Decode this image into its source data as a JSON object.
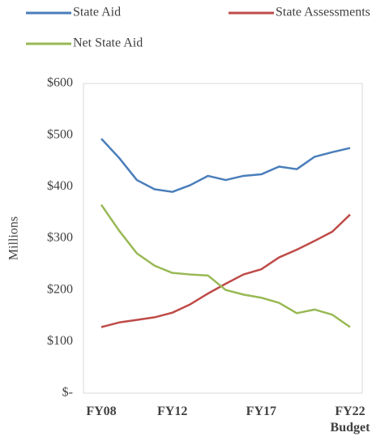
{
  "chart_data": {
    "type": "line",
    "y_label": "Millions",
    "categories": [
      "FY08",
      null,
      null,
      null,
      "FY12",
      null,
      null,
      null,
      null,
      "FY17",
      null,
      null,
      null,
      null,
      "FY22 Budget"
    ],
    "series": [
      {
        "name": "State Aid",
        "color": "#4a7ebb",
        "values": [
          493,
          456,
          413,
          395,
          390,
          403,
          421,
          413,
          421,
          424,
          439,
          434,
          458,
          467,
          475
        ]
      },
      {
        "name": "State Assessments",
        "color": "#be4b48",
        "values": [
          128,
          137,
          142,
          147,
          156,
          172,
          193,
          212,
          230,
          240,
          263,
          278,
          295,
          313,
          346
        ]
      },
      {
        "name": "Net State Aid",
        "color": "#98b954",
        "values": [
          365,
          315,
          271,
          247,
          233,
          230,
          228,
          200,
          191,
          185,
          175,
          155,
          162,
          152,
          128
        ]
      }
    ],
    "ylim": [
      0,
      600
    ],
    "yticks": [
      {
        "value": 0,
        "label": "$-"
      },
      {
        "value": 100,
        "label": "$100"
      },
      {
        "value": 200,
        "label": "$200"
      },
      {
        "value": 300,
        "label": "$300"
      },
      {
        "value": 400,
        "label": "$400"
      },
      {
        "value": 500,
        "label": "$500"
      },
      {
        "value": 600,
        "label": "$600"
      }
    ],
    "grid": false,
    "legend": "top"
  }
}
